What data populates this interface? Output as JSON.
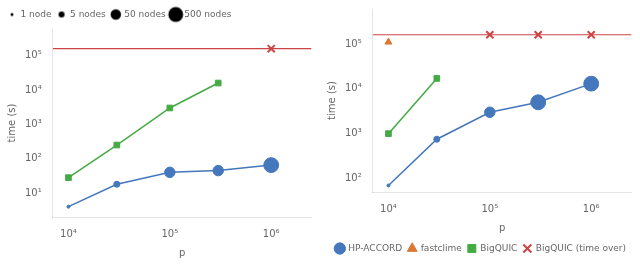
{
  "chart_data": [
    {
      "type": "line",
      "log": true,
      "xlabel": "p",
      "ylabel": "time (s)",
      "xlim": [
        7000,
        2500000
      ],
      "ylim": [
        2,
        600000
      ],
      "xticks": [
        {
          "value": 10000,
          "label": "10⁴"
        },
        {
          "value": 100000,
          "label": "10⁵"
        },
        {
          "value": 1000000,
          "label": "10⁶"
        }
      ],
      "yticks": [
        {
          "value": 10,
          "label": "10¹"
        },
        {
          "value": 100,
          "label": "10²"
        },
        {
          "value": 1000,
          "label": "10³"
        },
        {
          "value": 10000,
          "label": "10⁴"
        },
        {
          "value": 100000,
          "label": "10⁵"
        }
      ],
      "grid": false,
      "legend": "upper left",
      "size_legend": {
        "labels": [
          "1 node",
          "5 nodes",
          "50 nodes",
          "500 nodes"
        ],
        "nodes": [
          1,
          5,
          50,
          500
        ],
        "color": "#000000"
      },
      "series": [
        {
          "color": "#4477bb",
          "marker": "circle",
          "line_style": "solid",
          "x": [
            10000,
            30000,
            100000,
            300000,
            1000000
          ],
          "values": [
            4.0,
            18.0,
            40.0,
            45.0,
            65.0
          ],
          "nodes": [
            1,
            5,
            50,
            50,
            500
          ]
        },
        {
          "color": "#44aa44",
          "marker": "square",
          "line_style": "solid",
          "x": [
            10000,
            30000,
            100000,
            300000
          ],
          "values": [
            28.0,
            250.0,
            3000.0,
            16000.0
          ]
        },
        {
          "color": "#cc4444",
          "marker": "cross",
          "line_style": "none",
          "hline": 160000,
          "x": [
            1000000
          ],
          "values": [
            160000
          ]
        }
      ]
    },
    {
      "type": "line",
      "log": true,
      "xlabel": "p",
      "ylabel": "time (s)",
      "xlim": [
        7000,
        2500000
      ],
      "ylim": [
        50,
        600000
      ],
      "xticks": [
        {
          "value": 10000,
          "label": "10⁴"
        },
        {
          "value": 100000,
          "label": "10⁵"
        },
        {
          "value": 1000000,
          "label": "10⁶"
        }
      ],
      "yticks": [
        {
          "value": 100,
          "label": "10²"
        },
        {
          "value": 1000,
          "label": "10³"
        },
        {
          "value": 10000,
          "label": "10⁴"
        },
        {
          "value": 100000,
          "label": "10⁵"
        }
      ],
      "grid": false,
      "legend": "lower right",
      "series": [
        {
          "name": "HP-ACCORD",
          "color": "#4477bb",
          "marker": "circle",
          "line_style": "solid",
          "x": [
            10000,
            30000,
            100000,
            300000,
            1000000
          ],
          "values": [
            70.0,
            750.0,
            3000.0,
            5000.0,
            13000.0
          ],
          "nodes": [
            1,
            5,
            50,
            500,
            500
          ]
        },
        {
          "name": "fastclime",
          "color": "#dd7733",
          "marker": "triangle",
          "line_style": "none",
          "x": [
            10000
          ],
          "values": [
            110000.0
          ]
        },
        {
          "name": "BigQUIC",
          "color": "#44aa44",
          "marker": "square",
          "line_style": "solid",
          "x": [
            10000,
            30000
          ],
          "values": [
            1000.0,
            17000.0
          ]
        },
        {
          "name": "BigQUIC (time over)",
          "color": "#cc4444",
          "marker": "cross",
          "line_style": "none",
          "hline": 160000,
          "x": [
            100000,
            300000,
            1000000
          ],
          "values": [
            160000,
            160000,
            160000
          ]
        }
      ]
    }
  ]
}
